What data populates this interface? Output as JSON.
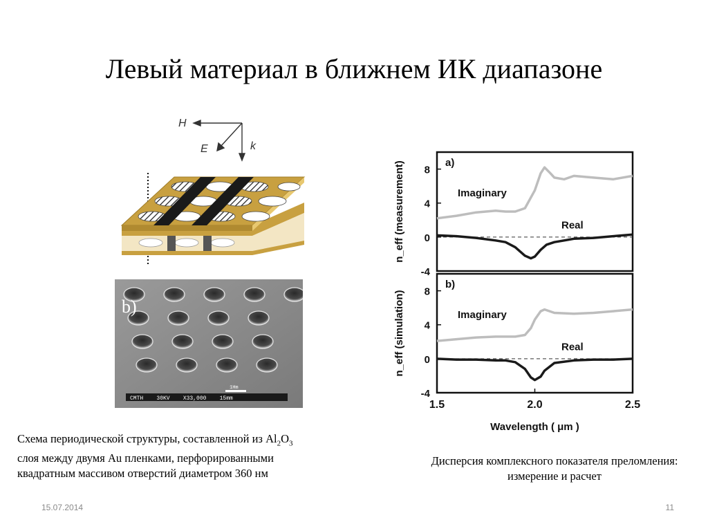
{
  "slide": {
    "title": "Левый материал в ближнем ИК диапазоне",
    "caption_left": [
      "Схема периодической структуры, составленной из ",
      "Al",
      "2",
      "O",
      "3",
      "слоя между двумя Au пленками, перфорированными",
      "квадратным массивом отверстий диаметром 360 нм"
    ],
    "caption_right_line1": "Дисперсия комплексного показателя преломления:",
    "caption_right_line2": "измерение и расчет",
    "date": "15.07.2014",
    "page_number": "11"
  },
  "schematic": {
    "vector_labels": [
      "H",
      "E",
      "k"
    ],
    "colors": {
      "gold": "#c8a040",
      "gold_light": "#e8c870",
      "film": "#f3e6c4",
      "stripe": "#1a1a1a",
      "hole": "#ffffff"
    }
  },
  "sem": {
    "panel_label": "b)",
    "scalebar_text": "CMTH    30KV    X33,000    15mm",
    "scale_label": "1Hm"
  },
  "chart_data": [
    {
      "type": "line",
      "panel_label": "a)",
      "ylabel": "n_eff (measurement)",
      "xlim": [
        1.5,
        2.5
      ],
      "ylim": [
        -4,
        10
      ],
      "yticks": [
        -4,
        0,
        4,
        8
      ],
      "reference_line": 0,
      "series": [
        {
          "name": "Imaginary",
          "color": "#bdbdbd",
          "x": [
            1.5,
            1.6,
            1.7,
            1.8,
            1.85,
            1.9,
            1.95,
            2.0,
            2.03,
            2.05,
            2.08,
            2.1,
            2.15,
            2.2,
            2.3,
            2.4,
            2.5
          ],
          "y": [
            2.2,
            2.5,
            2.9,
            3.1,
            3.0,
            3.0,
            3.4,
            5.5,
            7.5,
            8.2,
            7.5,
            7.0,
            6.8,
            7.2,
            7.0,
            6.8,
            7.2
          ]
        },
        {
          "name": "Real",
          "color": "#1a1a1a",
          "x": [
            1.5,
            1.6,
            1.7,
            1.8,
            1.85,
            1.9,
            1.95,
            1.98,
            2.0,
            2.03,
            2.06,
            2.1,
            2.15,
            2.2,
            2.3,
            2.4,
            2.5
          ],
          "y": [
            0.2,
            0.1,
            -0.1,
            -0.4,
            -0.6,
            -1.2,
            -2.2,
            -2.5,
            -2.3,
            -1.5,
            -0.9,
            -0.6,
            -0.4,
            -0.2,
            -0.1,
            0.1,
            0.3
          ]
        }
      ]
    },
    {
      "type": "line",
      "panel_label": "b)",
      "ylabel": "n_eff (simulation)",
      "xlabel": "Wavelength ( μm )",
      "xlim": [
        1.5,
        2.5
      ],
      "ylim": [
        -4,
        10
      ],
      "yticks": [
        -4,
        0,
        4,
        8
      ],
      "xticks": [
        1.5,
        2.0,
        2.5
      ],
      "reference_line": 0,
      "series": [
        {
          "name": "Imaginary",
          "color": "#bdbdbd",
          "x": [
            1.5,
            1.6,
            1.7,
            1.8,
            1.9,
            1.95,
            1.98,
            2.0,
            2.03,
            2.05,
            2.1,
            2.2,
            2.3,
            2.4,
            2.5
          ],
          "y": [
            2.1,
            2.3,
            2.5,
            2.6,
            2.6,
            2.8,
            3.6,
            4.6,
            5.6,
            5.8,
            5.4,
            5.3,
            5.4,
            5.6,
            5.8
          ]
        },
        {
          "name": "Real",
          "color": "#1a1a1a",
          "x": [
            1.5,
            1.6,
            1.7,
            1.8,
            1.85,
            1.9,
            1.95,
            1.98,
            2.0,
            2.03,
            2.05,
            2.1,
            2.2,
            2.3,
            2.4,
            2.5
          ],
          "y": [
            0.0,
            -0.1,
            -0.1,
            -0.2,
            -0.2,
            -0.4,
            -1.2,
            -2.2,
            -2.5,
            -2.1,
            -1.4,
            -0.5,
            -0.2,
            -0.1,
            -0.1,
            0.0
          ]
        }
      ]
    }
  ]
}
